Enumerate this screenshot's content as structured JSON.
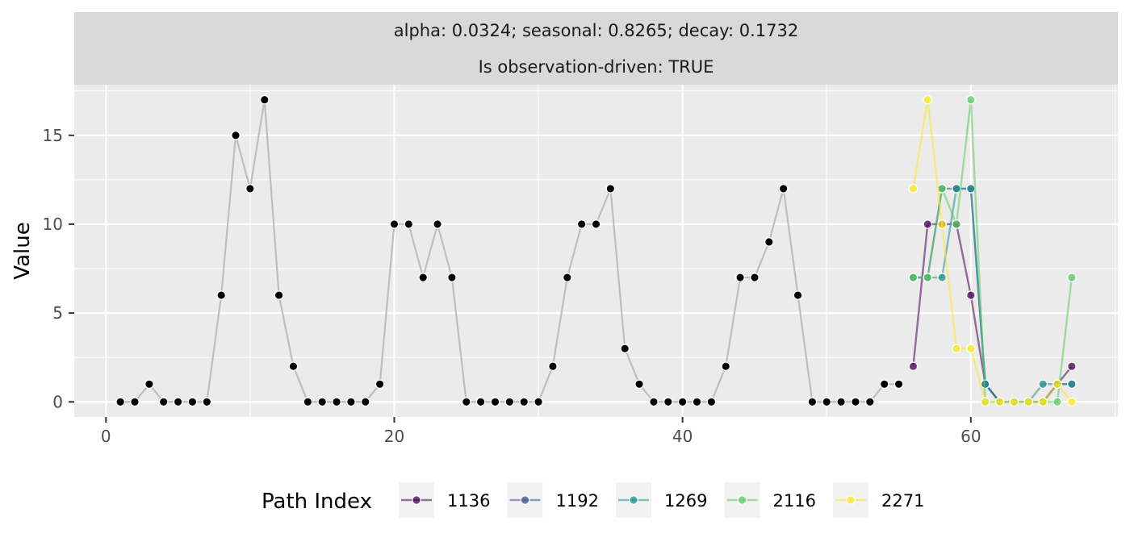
{
  "chart_data": {
    "type": "line",
    "strip": {
      "line1": "alpha: 0.0324; seasonal: 0.8265; decay: 0.1732",
      "line2": "Is observation-driven: TRUE"
    },
    "ylabel": "Value",
    "xlabel": "",
    "xlim": [
      -2.2,
      70.2
    ],
    "ylim": [
      -0.85,
      17.85
    ],
    "x_ticks": [
      0,
      20,
      40,
      60
    ],
    "y_ticks": [
      0,
      5,
      10,
      15
    ],
    "grid": true,
    "legend": {
      "position": "bottom",
      "title": "Path Index",
      "entries": [
        "1136",
        "1192",
        "1269",
        "2116",
        "2271"
      ]
    },
    "observed": {
      "color": "#bebebe",
      "point_color": "#000000",
      "x": [
        1,
        2,
        3,
        4,
        5,
        6,
        7,
        8,
        9,
        10,
        11,
        12,
        13,
        14,
        15,
        16,
        17,
        18,
        19,
        20,
        21,
        22,
        23,
        24,
        25,
        26,
        27,
        28,
        29,
        30,
        31,
        32,
        33,
        34,
        35,
        36,
        37,
        38,
        39,
        40,
        41,
        42,
        43,
        44,
        45,
        46,
        47,
        48,
        49,
        50,
        51,
        52,
        53,
        54,
        55
      ],
      "y": [
        0,
        0,
        1,
        0,
        0,
        0,
        0,
        6,
        15,
        12,
        17,
        6,
        2,
        0,
        0,
        0,
        0,
        0,
        1,
        10,
        10,
        7,
        10,
        7,
        0,
        0,
        0,
        0,
        0,
        0,
        2,
        7,
        10,
        10,
        12,
        3,
        1,
        0,
        0,
        0,
        0,
        0,
        2,
        7,
        7,
        9,
        12,
        6,
        0,
        0,
        0,
        0,
        0,
        1,
        1
      ]
    },
    "series": [
      {
        "name": "1136",
        "color": "#440154",
        "x": [
          56,
          57,
          58,
          59,
          60,
          61,
          62,
          63,
          64,
          65,
          66,
          67
        ],
        "y": [
          2,
          10,
          10,
          10,
          6,
          1,
          0,
          0,
          0,
          0,
          1,
          2
        ]
      },
      {
        "name": "1192",
        "color": "#3b528b",
        "x": [
          56,
          57,
          58,
          59,
          60,
          61,
          62,
          63,
          64,
          65,
          66,
          67
        ],
        "y": [
          7,
          7,
          12,
          12,
          12,
          1,
          0,
          0,
          0,
          0,
          1,
          1
        ]
      },
      {
        "name": "1269",
        "color": "#21908c",
        "x": [
          56,
          57,
          58,
          59,
          60,
          61,
          62,
          63,
          64,
          65,
          66,
          67
        ],
        "y": [
          7,
          7,
          7,
          12,
          12,
          1,
          0,
          0,
          0,
          1,
          1,
          1
        ]
      },
      {
        "name": "2116",
        "color": "#5dc963",
        "x": [
          56,
          57,
          58,
          59,
          60,
          61,
          62,
          63,
          64,
          65,
          66,
          67
        ],
        "y": [
          7,
          7,
          12,
          10,
          17,
          0,
          0,
          0,
          0,
          0,
          0,
          7
        ]
      },
      {
        "name": "2271",
        "color": "#fde725",
        "x": [
          56,
          57,
          58,
          59,
          60,
          61,
          62,
          63,
          64,
          65,
          66,
          67
        ],
        "y": [
          12,
          17,
          10,
          3,
          3,
          0,
          0,
          0,
          0,
          0,
          1,
          0
        ]
      }
    ]
  }
}
